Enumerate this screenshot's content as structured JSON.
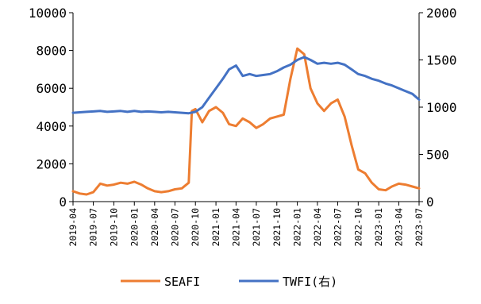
{
  "chart_data": {
    "type": "line",
    "x_ticks": [
      "2019-04",
      "2019-07",
      "2019-10",
      "2020-01",
      "2020-04",
      "2020-07",
      "2020-10",
      "2021-01",
      "2021-04",
      "2021-07",
      "2021-10",
      "2022-01",
      "2022-04",
      "2022-07",
      "2022-10",
      "2023-01",
      "2023-04",
      "2023-07"
    ],
    "y_left": {
      "lim": [
        0,
        10000
      ],
      "ticks": [
        "0",
        "2000",
        "4000",
        "6000",
        "8000",
        "10000"
      ]
    },
    "y_right": {
      "lim": [
        0,
        2000
      ],
      "ticks": [
        "0",
        "500",
        "1000",
        "1500",
        "2000"
      ]
    },
    "grid": false,
    "legend_position": "bottom",
    "series": [
      {
        "name": "SEAFI",
        "axis": "left",
        "color": "#ED7D31",
        "points": [
          [
            "2019-04",
            550
          ],
          [
            "2019-05",
            430
          ],
          [
            "2019-06",
            380
          ],
          [
            "2019-07",
            500
          ],
          [
            "2019-08",
            950
          ],
          [
            "2019-09",
            850
          ],
          [
            "2019-10",
            900
          ],
          [
            "2019-11",
            1000
          ],
          [
            "2019-12",
            950
          ],
          [
            "2020-01",
            1050
          ],
          [
            "2020-02",
            900
          ],
          [
            "2020-03",
            700
          ],
          [
            "2020-04",
            550
          ],
          [
            "2020-05",
            500
          ],
          [
            "2020-06",
            550
          ],
          [
            "2020-07",
            650
          ],
          [
            "2020-08",
            700
          ],
          [
            "2020-09",
            1000
          ],
          [
            "2020-09-15",
            4800
          ],
          [
            "2020-10",
            4900
          ],
          [
            "2020-11",
            4200
          ],
          [
            "2020-12",
            4800
          ],
          [
            "2021-01",
            5000
          ],
          [
            "2021-02",
            4700
          ],
          [
            "2021-03",
            4100
          ],
          [
            "2021-04",
            4000
          ],
          [
            "2021-05",
            4400
          ],
          [
            "2021-06",
            4200
          ],
          [
            "2021-07",
            3900
          ],
          [
            "2021-08",
            4100
          ],
          [
            "2021-09",
            4400
          ],
          [
            "2021-10",
            4500
          ],
          [
            "2021-11",
            4600
          ],
          [
            "2021-12",
            6500
          ],
          [
            "2022-01",
            8100
          ],
          [
            "2022-02",
            7800
          ],
          [
            "2022-03",
            6000
          ],
          [
            "2022-04",
            5200
          ],
          [
            "2022-05",
            4800
          ],
          [
            "2022-06",
            5200
          ],
          [
            "2022-07",
            5400
          ],
          [
            "2022-08",
            4500
          ],
          [
            "2022-09",
            3000
          ],
          [
            "2022-10",
            1700
          ],
          [
            "2022-11",
            1500
          ],
          [
            "2022-12",
            1000
          ],
          [
            "2023-01",
            650
          ],
          [
            "2023-02",
            600
          ],
          [
            "2023-03",
            800
          ],
          [
            "2023-04",
            950
          ],
          [
            "2023-05",
            900
          ],
          [
            "2023-06",
            800
          ],
          [
            "2023-07",
            700
          ]
        ]
      },
      {
        "name": "TWFI(右)",
        "axis": "right",
        "color": "#4472C4",
        "points": [
          [
            "2019-04",
            940
          ],
          [
            "2019-05",
            945
          ],
          [
            "2019-06",
            950
          ],
          [
            "2019-07",
            955
          ],
          [
            "2019-08",
            960
          ],
          [
            "2019-09",
            950
          ],
          [
            "2019-10",
            955
          ],
          [
            "2019-11",
            960
          ],
          [
            "2019-12",
            950
          ],
          [
            "2020-01",
            960
          ],
          [
            "2020-02",
            950
          ],
          [
            "2020-03",
            955
          ],
          [
            "2020-04",
            950
          ],
          [
            "2020-05",
            945
          ],
          [
            "2020-06",
            950
          ],
          [
            "2020-07",
            945
          ],
          [
            "2020-08",
            940
          ],
          [
            "2020-09",
            935
          ],
          [
            "2020-10",
            950
          ],
          [
            "2020-11",
            1000
          ],
          [
            "2020-12",
            1100
          ],
          [
            "2021-01",
            1200
          ],
          [
            "2021-02",
            1300
          ],
          [
            "2021-03",
            1400
          ],
          [
            "2021-04",
            1440
          ],
          [
            "2021-05",
            1330
          ],
          [
            "2021-06",
            1350
          ],
          [
            "2021-07",
            1330
          ],
          [
            "2021-08",
            1340
          ],
          [
            "2021-09",
            1350
          ],
          [
            "2021-10",
            1380
          ],
          [
            "2021-11",
            1420
          ],
          [
            "2021-12",
            1450
          ],
          [
            "2022-01",
            1500
          ],
          [
            "2022-02",
            1530
          ],
          [
            "2022-03",
            1500
          ],
          [
            "2022-04",
            1460
          ],
          [
            "2022-05",
            1470
          ],
          [
            "2022-06",
            1460
          ],
          [
            "2022-07",
            1470
          ],
          [
            "2022-08",
            1450
          ],
          [
            "2022-09",
            1400
          ],
          [
            "2022-10",
            1350
          ],
          [
            "2022-11",
            1330
          ],
          [
            "2022-12",
            1300
          ],
          [
            "2023-01",
            1280
          ],
          [
            "2023-02",
            1250
          ],
          [
            "2023-03",
            1230
          ],
          [
            "2023-04",
            1200
          ],
          [
            "2023-05",
            1170
          ],
          [
            "2023-06",
            1140
          ],
          [
            "2023-07",
            1080
          ]
        ]
      }
    ]
  }
}
